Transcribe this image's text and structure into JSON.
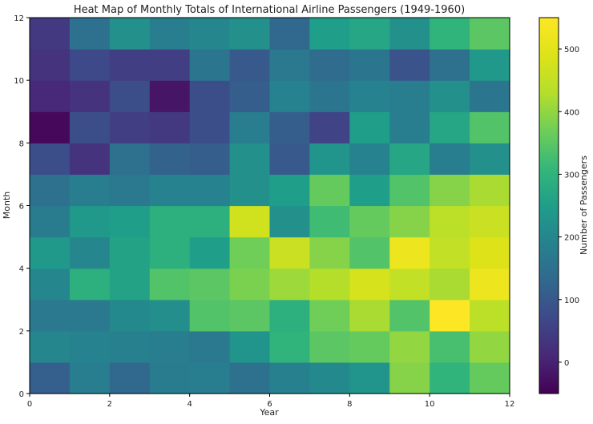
{
  "chart_data": {
    "type": "heatmap",
    "title": "Heat Map of Monthly Totals of International Airline Passengers (1949-1960)",
    "xlabel": "Year",
    "ylabel": "Month",
    "xlim": [
      0,
      12
    ],
    "ylim": [
      0,
      12
    ],
    "x_ticks": [
      0,
      2,
      4,
      6,
      8,
      10,
      12
    ],
    "y_ticks": [
      0,
      2,
      4,
      6,
      8,
      10,
      12
    ],
    "colormap": "viridis",
    "colorbar": {
      "label": "Number of Passengers",
      "range": [
        -50,
        550
      ],
      "ticks": [
        0,
        100,
        200,
        300,
        400,
        500
      ]
    },
    "grid": false,
    "rows_bottom_to_top": [
      [
        112,
        180,
        130,
        175,
        180,
        150,
        185,
        205,
        230,
        390,
        300,
        360
      ],
      [
        200,
        190,
        185,
        180,
        170,
        230,
        300,
        350,
        360,
        400,
        330,
        400
      ],
      [
        170,
        170,
        205,
        215,
        340,
        350,
        290,
        370,
        420,
        340,
        550,
        440
      ],
      [
        200,
        290,
        260,
        340,
        350,
        380,
        410,
        430,
        480,
        450,
        420,
        520
      ],
      [
        240,
        200,
        260,
        290,
        250,
        370,
        460,
        390,
        340,
        520,
        450,
        490
      ],
      [
        175,
        240,
        250,
        290,
        290,
        470,
        220,
        320,
        360,
        390,
        440,
        460
      ],
      [
        150,
        180,
        170,
        190,
        190,
        220,
        250,
        360,
        250,
        340,
        390,
        420
      ],
      [
        80,
        30,
        150,
        120,
        110,
        220,
        100,
        230,
        190,
        270,
        180,
        220
      ],
      [
        -40,
        80,
        50,
        40,
        80,
        180,
        110,
        60,
        250,
        180,
        270,
        340
      ],
      [
        10,
        30,
        80,
        -20,
        80,
        110,
        190,
        160,
        190,
        180,
        220,
        160
      ],
      [
        30,
        70,
        50,
        50,
        160,
        100,
        170,
        140,
        160,
        90,
        150,
        240
      ],
      [
        40,
        150,
        220,
        180,
        200,
        220,
        130,
        250,
        270,
        220,
        300,
        350
      ]
    ]
  }
}
